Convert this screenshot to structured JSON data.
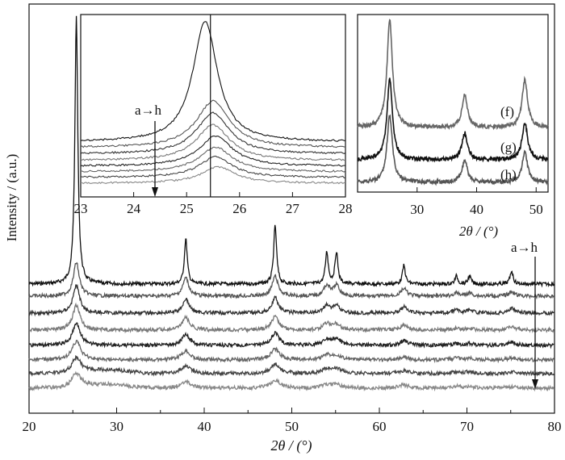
{
  "chart_data": [
    {
      "id": "main",
      "type": "line",
      "xlabel": "2θ / (°)",
      "ylabel": "Intensity / (a.u.)",
      "xlim": [
        20,
        80
      ],
      "xticks": [
        20,
        30,
        40,
        50,
        60,
        70,
        80
      ],
      "annotation": "a→h",
      "peaks_2theta": [
        25.4,
        37.9,
        48.1,
        54.0,
        55.1,
        62.8,
        68.8,
        70.3,
        75.1
      ],
      "series": [
        {
          "name": "a",
          "peak_intensity": [
            1.0,
            0.17,
            0.22,
            0.12,
            0.12,
            0.07,
            0.03,
            0.03,
            0.05
          ]
        },
        {
          "name": "b",
          "peak_intensity": [
            0.22,
            0.12,
            0.13,
            0.07,
            0.07,
            0.05,
            0.02,
            0.02,
            0.03
          ]
        },
        {
          "name": "c",
          "peak_intensity": [
            0.18,
            0.09,
            0.1,
            0.05,
            0.05,
            0.04,
            0.02,
            0.02,
            0.03
          ]
        },
        {
          "name": "d",
          "peak_intensity": [
            0.16,
            0.08,
            0.09,
            0.04,
            0.04,
            0.03,
            0.01,
            0.01,
            0.02
          ]
        },
        {
          "name": "e",
          "peak_intensity": [
            0.14,
            0.07,
            0.08,
            0.04,
            0.04,
            0.03,
            0.01,
            0.01,
            0.02
          ]
        },
        {
          "name": "f",
          "peak_intensity": [
            0.12,
            0.06,
            0.07,
            0.03,
            0.03,
            0.02,
            0.01,
            0.01,
            0.01
          ]
        },
        {
          "name": "g",
          "peak_intensity": [
            0.1,
            0.05,
            0.06,
            0.03,
            0.03,
            0.02,
            0.01,
            0.01,
            0.01
          ]
        },
        {
          "name": "h",
          "peak_intensity": [
            0.09,
            0.04,
            0.05,
            0.02,
            0.02,
            0.02,
            0.01,
            0.01,
            0.01
          ]
        }
      ]
    },
    {
      "id": "inset-left",
      "type": "line",
      "xlim": [
        23,
        28
      ],
      "xticks": [
        23,
        24,
        25,
        26,
        27,
        28
      ],
      "annotation": "a→h",
      "reference_line_x": 25.45,
      "series": [
        {
          "name": "a",
          "peak_2theta": 25.35,
          "peak_height": 1.0
        },
        {
          "name": "b",
          "peak_2theta": 25.5,
          "peak_height": 0.34
        },
        {
          "name": "c",
          "peak_2theta": 25.5,
          "peak_height": 0.3
        },
        {
          "name": "d",
          "peak_2theta": 25.5,
          "peak_height": 0.26
        },
        {
          "name": "e",
          "peak_2theta": 25.55,
          "peak_height": 0.22
        },
        {
          "name": "f",
          "peak_2theta": 25.55,
          "peak_height": 0.18
        },
        {
          "name": "g",
          "peak_2theta": 25.55,
          "peak_height": 0.15
        },
        {
          "name": "h",
          "peak_2theta": 25.6,
          "peak_height": 0.12
        }
      ]
    },
    {
      "id": "inset-right",
      "type": "line",
      "xlabel": "2θ / (°)",
      "xlim": [
        20,
        52
      ],
      "xticks": [
        30,
        40,
        50
      ],
      "series": [
        {
          "name": "(f)",
          "peaks_2theta": [
            25.4,
            38.0,
            48.1
          ],
          "peak_intensity": [
            1.0,
            0.3,
            0.45
          ]
        },
        {
          "name": "(g)",
          "peaks_2theta": [
            25.4,
            38.0,
            48.1
          ],
          "peak_intensity": [
            0.75,
            0.25,
            0.35
          ]
        },
        {
          "name": "(h)",
          "peaks_2theta": [
            25.4,
            38.0,
            48.1
          ],
          "peak_intensity": [
            0.62,
            0.2,
            0.28
          ]
        }
      ]
    }
  ]
}
